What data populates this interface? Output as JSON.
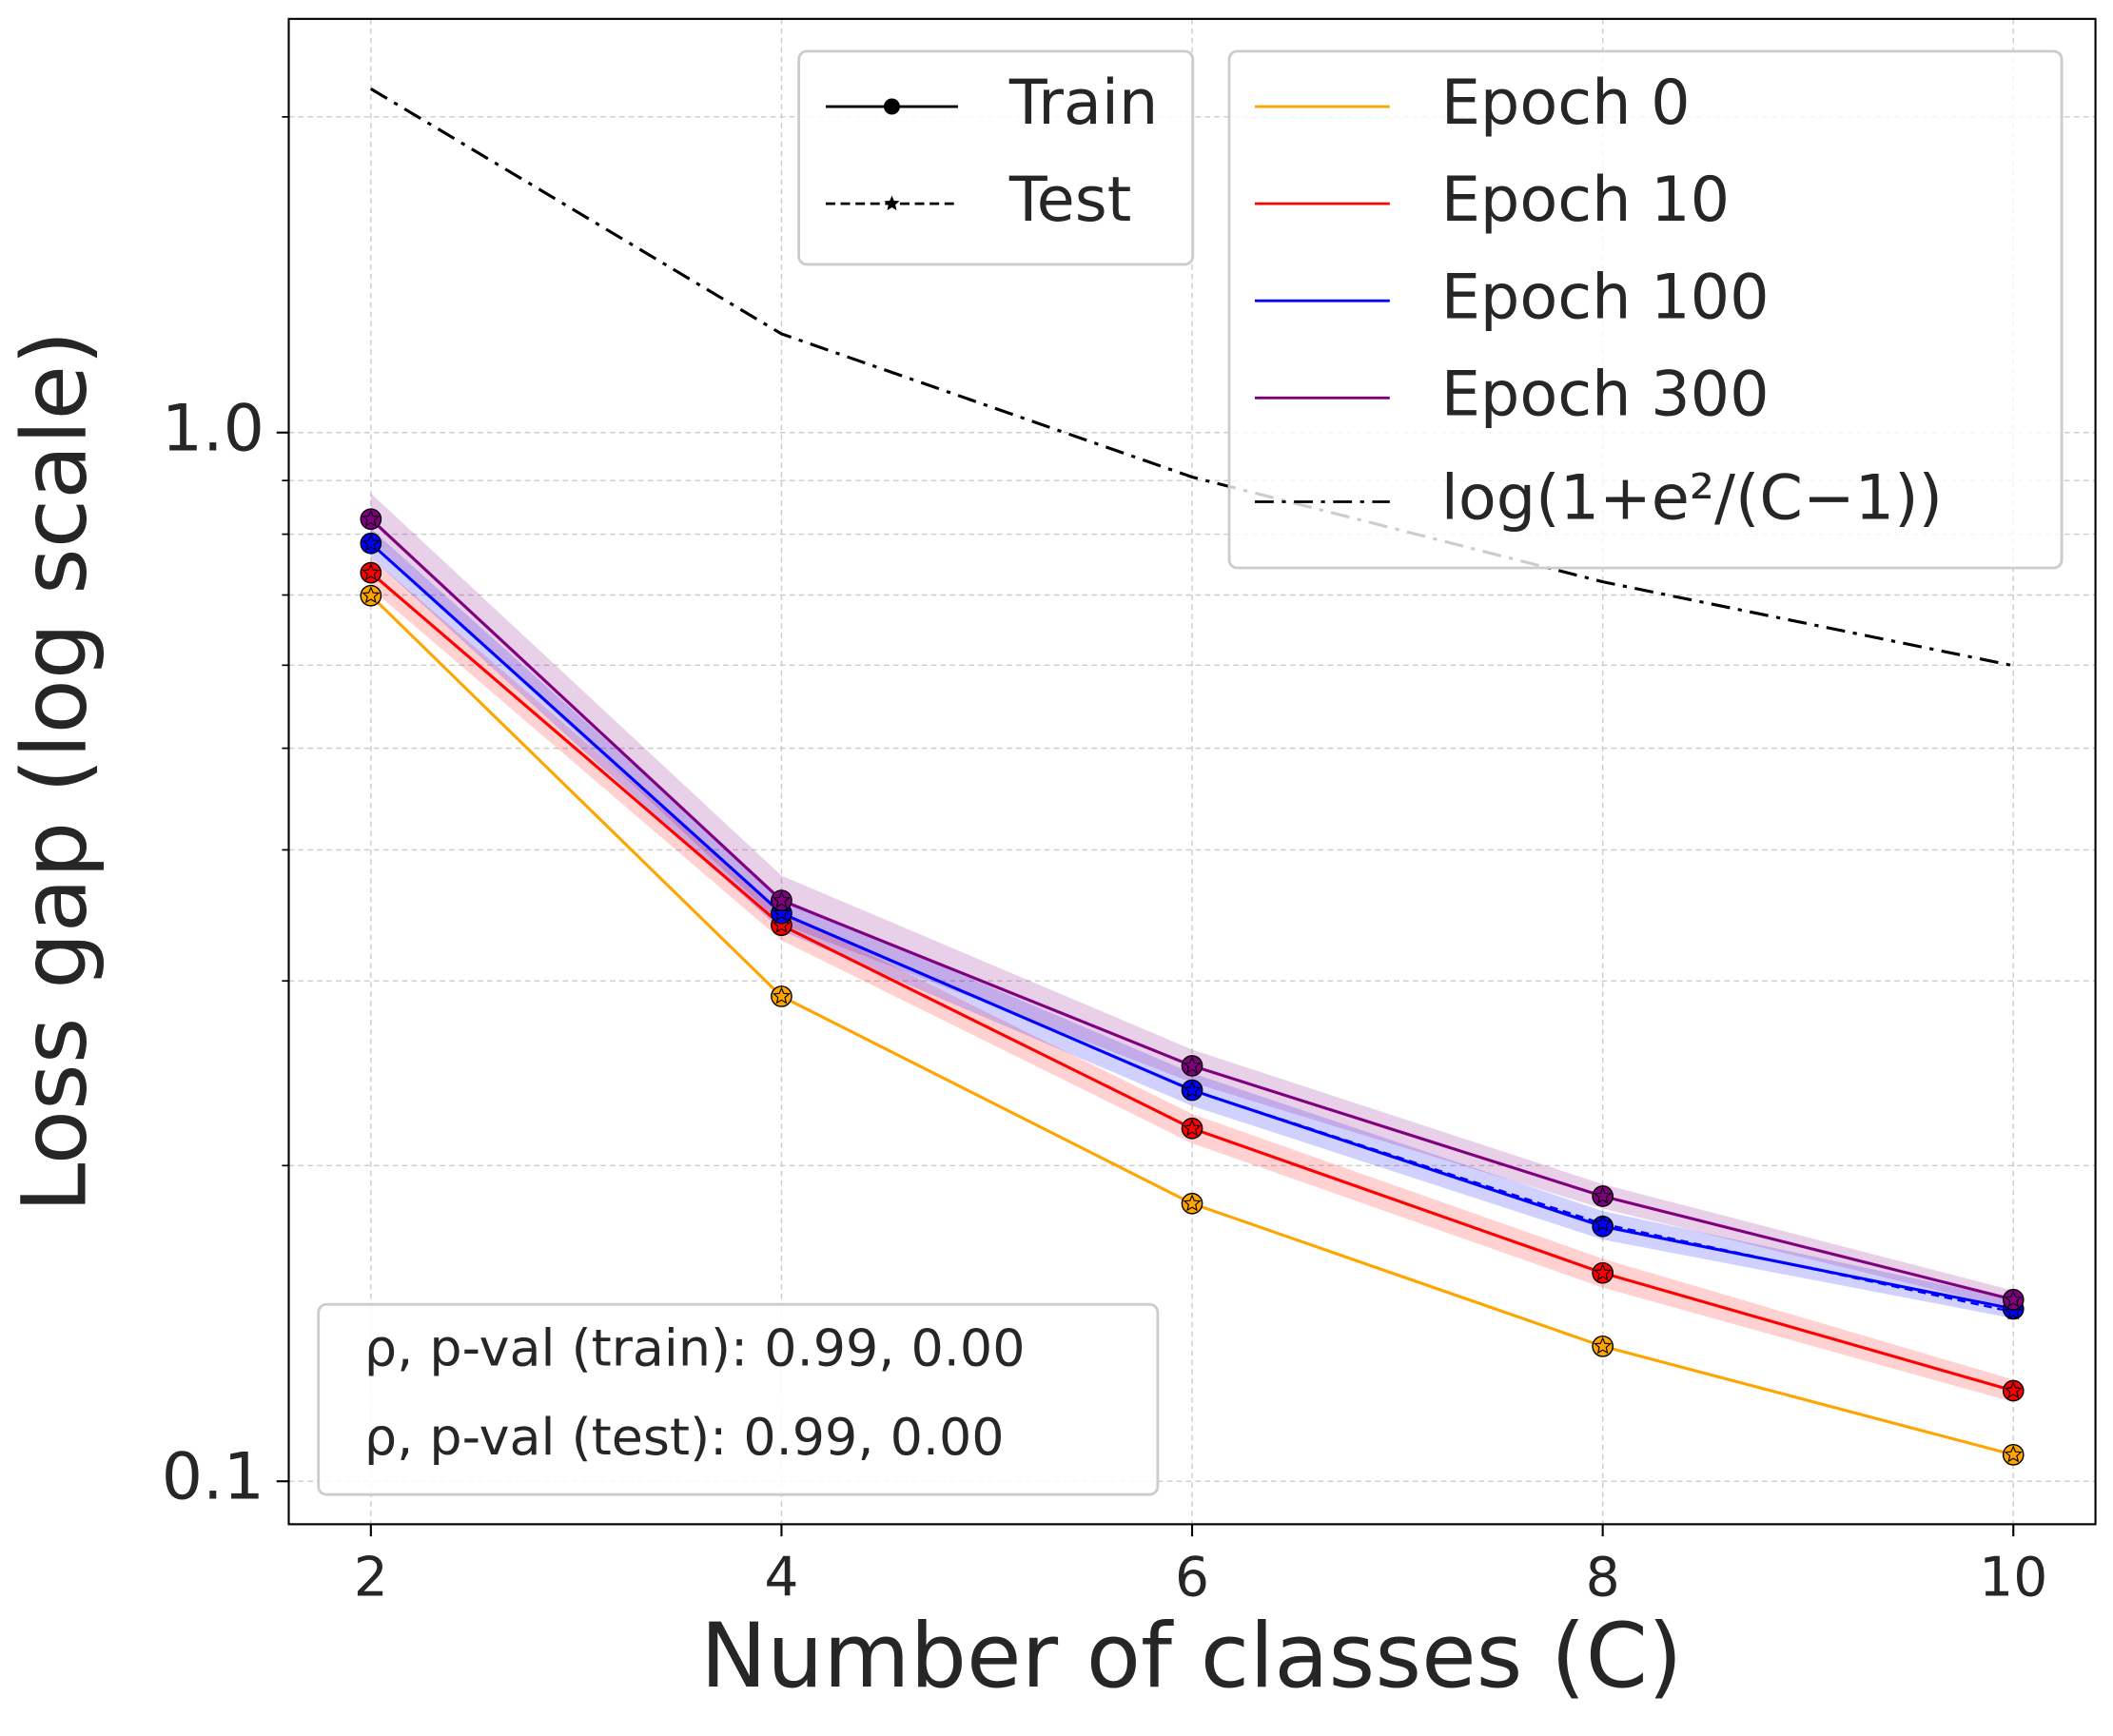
{
  "chart_data": {
    "type": "line",
    "log_y": true,
    "grid": true,
    "xlabel": "Number of classes  (C)",
    "ylabel": "Loss gap (log  scale)",
    "x": [
      2,
      4,
      6,
      8,
      10
    ],
    "xlim": [
      1.6,
      10.4
    ],
    "xticks": [
      2,
      4,
      6,
      8,
      10
    ],
    "ylim": [
      0.091,
      2.48
    ],
    "yticks": [
      0.1,
      {
        "value": 1,
        "label": "1.0"
      }
    ],
    "yminor_ticks": [
      0.2,
      0.3,
      0.4,
      0.5,
      0.6,
      0.7,
      0.8,
      0.9,
      2
    ],
    "series": [
      {
        "name": "Epoch 0",
        "color": "#ffa500",
        "values": [
          0.699,
          0.29,
          0.184,
          0.1345,
          0.106
        ],
        "test_values": [
          0.699,
          0.29,
          0.184,
          0.1345,
          0.106
        ]
      },
      {
        "name": "Epoch 10",
        "color": "#ff0000",
        "values": [
          0.735,
          0.339,
          0.217,
          0.158,
          0.122
        ],
        "test_values": [
          0.735,
          0.339,
          0.217,
          0.158,
          0.122
        ],
        "upper": [
          0.76,
          0.35,
          0.224,
          0.163,
          0.125
        ],
        "lower": [
          0.71,
          0.328,
          0.21,
          0.153,
          0.119
        ]
      },
      {
        "name": "Epoch 100",
        "color": "#0000ff",
        "values": [
          0.784,
          0.348,
          0.236,
          0.175,
          0.146
        ],
        "test_values": [
          0.784,
          0.348,
          0.236,
          0.176,
          0.145
        ],
        "upper": [
          0.81,
          0.36,
          0.245,
          0.181,
          0.149
        ],
        "lower": [
          0.76,
          0.335,
          0.228,
          0.17,
          0.143
        ]
      },
      {
        "name": "Epoch 300",
        "color": "#800080",
        "values": [
          0.827,
          0.358,
          0.249,
          0.187,
          0.149
        ],
        "test_values": [
          0.827,
          0.358,
          0.249,
          0.187,
          0.149
        ],
        "upper": [
          0.875,
          0.378,
          0.258,
          0.192,
          0.152
        ],
        "lower": [
          0.79,
          0.34,
          0.24,
          0.182,
          0.146
        ]
      },
      {
        "name": "log(1+e²/(C−1))",
        "color": "#000000",
        "style": "dashdot",
        "values": [
          2.127,
          1.242,
          0.907,
          0.7206,
          0.5994
        ]
      }
    ],
    "style_legend": [
      {
        "label": "Train",
        "style": "solid"
      },
      {
        "label": "Test",
        "style": "dashed"
      }
    ],
    "annotations": [
      "ρ, p-val (train):  0.99, 0.00",
      "ρ, p-val (test):  0.99, 0.00"
    ]
  }
}
